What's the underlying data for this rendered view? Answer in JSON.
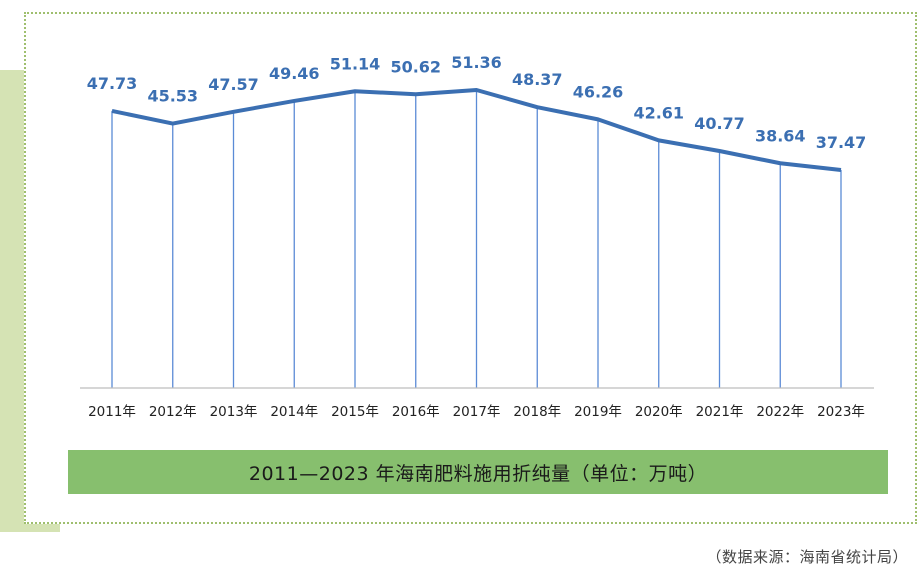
{
  "chart_data": {
    "type": "line",
    "categories": [
      "2011年",
      "2012年",
      "2013年",
      "2014年",
      "2015年",
      "2016年",
      "2017年",
      "2018年",
      "2019年",
      "2020年",
      "2021年",
      "2022年",
      "2023年"
    ],
    "values": [
      47.73,
      45.53,
      47.57,
      49.46,
      51.14,
      50.62,
      51.36,
      48.37,
      46.26,
      42.61,
      40.77,
      38.64,
      37.47
    ],
    "value_labels": [
      "47.73",
      "45.53",
      "47.57",
      "49.46",
      "51.14",
      "50.62",
      "51.36",
      "48.37",
      "46.26",
      "42.61",
      "40.77",
      "38.64",
      "37.47"
    ],
    "title": "2011—2023 年海南肥料施用折纯量（单位：万吨）",
    "source": "（数据来源：海南省统计局）",
    "colors": {
      "line": "#3b6fb2",
      "label": "#3b6fb2",
      "drop": "#5b8bd6",
      "axis": "#bdbdbd",
      "title_bg": "#87bf6e",
      "frame": "#9fbf6e"
    },
    "grid": false,
    "legend": "none"
  }
}
